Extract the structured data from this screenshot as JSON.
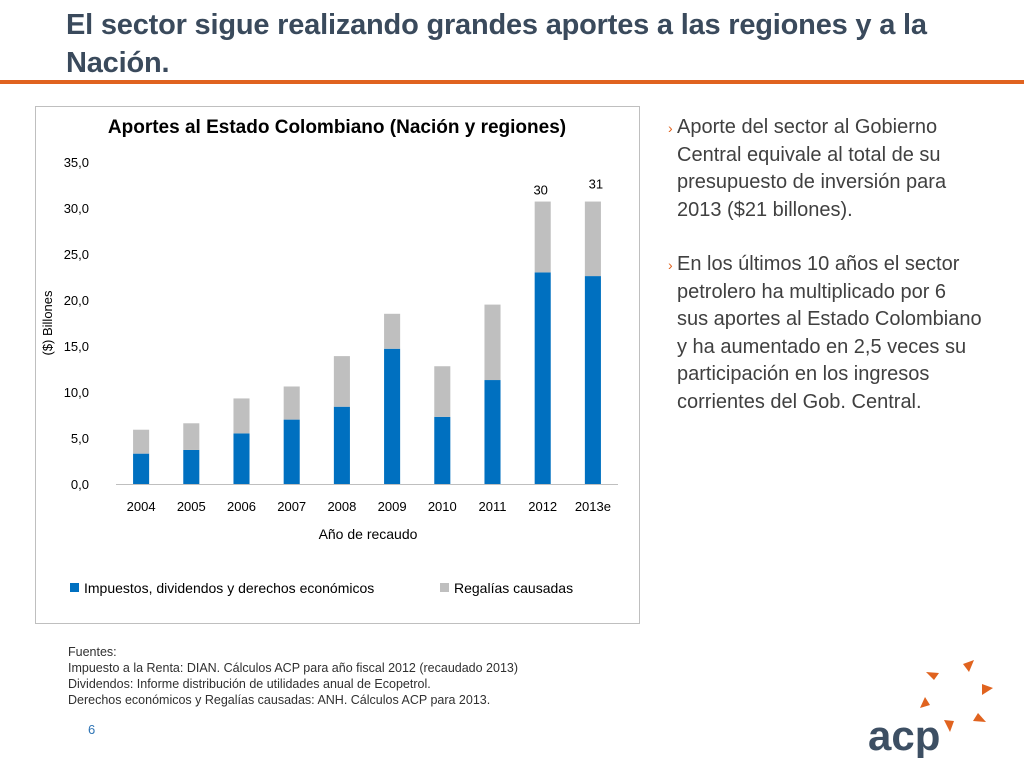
{
  "slide": {
    "title_line1": "El sector sigue realizando grandes aportes a las regiones y a la",
    "title_line2": "Nación.",
    "page_number": "6"
  },
  "bullets": [
    {
      "lines": [
        "Aporte del sector al Gobierno",
        "Central equivale al total de su",
        "presupuesto de inversión para",
        "2013 ($21 billones)."
      ]
    },
    {
      "lines": [
        "En los últimos 10 años el sector",
        "petrolero ha multiplicado por 6",
        "sus aportes al Estado Colombiano",
        "y ha aumentado en 2,5 veces su",
        "participación en los ingresos",
        "corrientes del Gob. Central."
      ]
    }
  ],
  "sources": {
    "heading": "Fuentes:",
    "lines": [
      "Impuesto a la Renta: DIAN. Cálculos ACP para año fiscal 2012 (recaudado 2013)",
      "Dividendos: Informe distribución de utilidades anual de Ecopetrol.",
      "Derechos económicos y Regalías causadas: ANH. Cálculos ACP para 2013."
    ]
  },
  "logo": {
    "text": "acp",
    "color": "#3d4f63",
    "accent": "#e0631f"
  },
  "chart_data": {
    "type": "bar",
    "stacked": true,
    "title": "Aportes al Estado Colombiano (Nación y regiones)",
    "xlabel": "Año de recaudo",
    "ylabel": "($) Billones",
    "ylim": [
      0,
      35
    ],
    "yticks": [
      "0,0",
      "5,0",
      "10,0",
      "15,0",
      "20,0",
      "25,0",
      "30,0",
      "35,0"
    ],
    "categories": [
      "2004",
      "2005",
      "2006",
      "2007",
      "2008",
      "2009",
      "2010",
      "2011",
      "2012",
      "2013e"
    ],
    "series": [
      {
        "name": "Impuestos, dividendos y derechos económicos",
        "color": "#0070c0",
        "values": [
          3.3,
          3.7,
          5.5,
          7.0,
          8.4,
          14.7,
          7.3,
          11.3,
          23.0,
          22.6
        ]
      },
      {
        "name": "Regalías causadas",
        "color": "#bfbfbf",
        "values": [
          2.6,
          2.9,
          3.8,
          3.6,
          5.5,
          3.8,
          5.5,
          8.2,
          7.7,
          8.1
        ]
      }
    ],
    "total_labels": [
      "",
      "",
      "",
      "",
      "",
      "",
      "",
      "",
      "30",
      "31"
    ],
    "grid": false,
    "legend": "bottom"
  }
}
